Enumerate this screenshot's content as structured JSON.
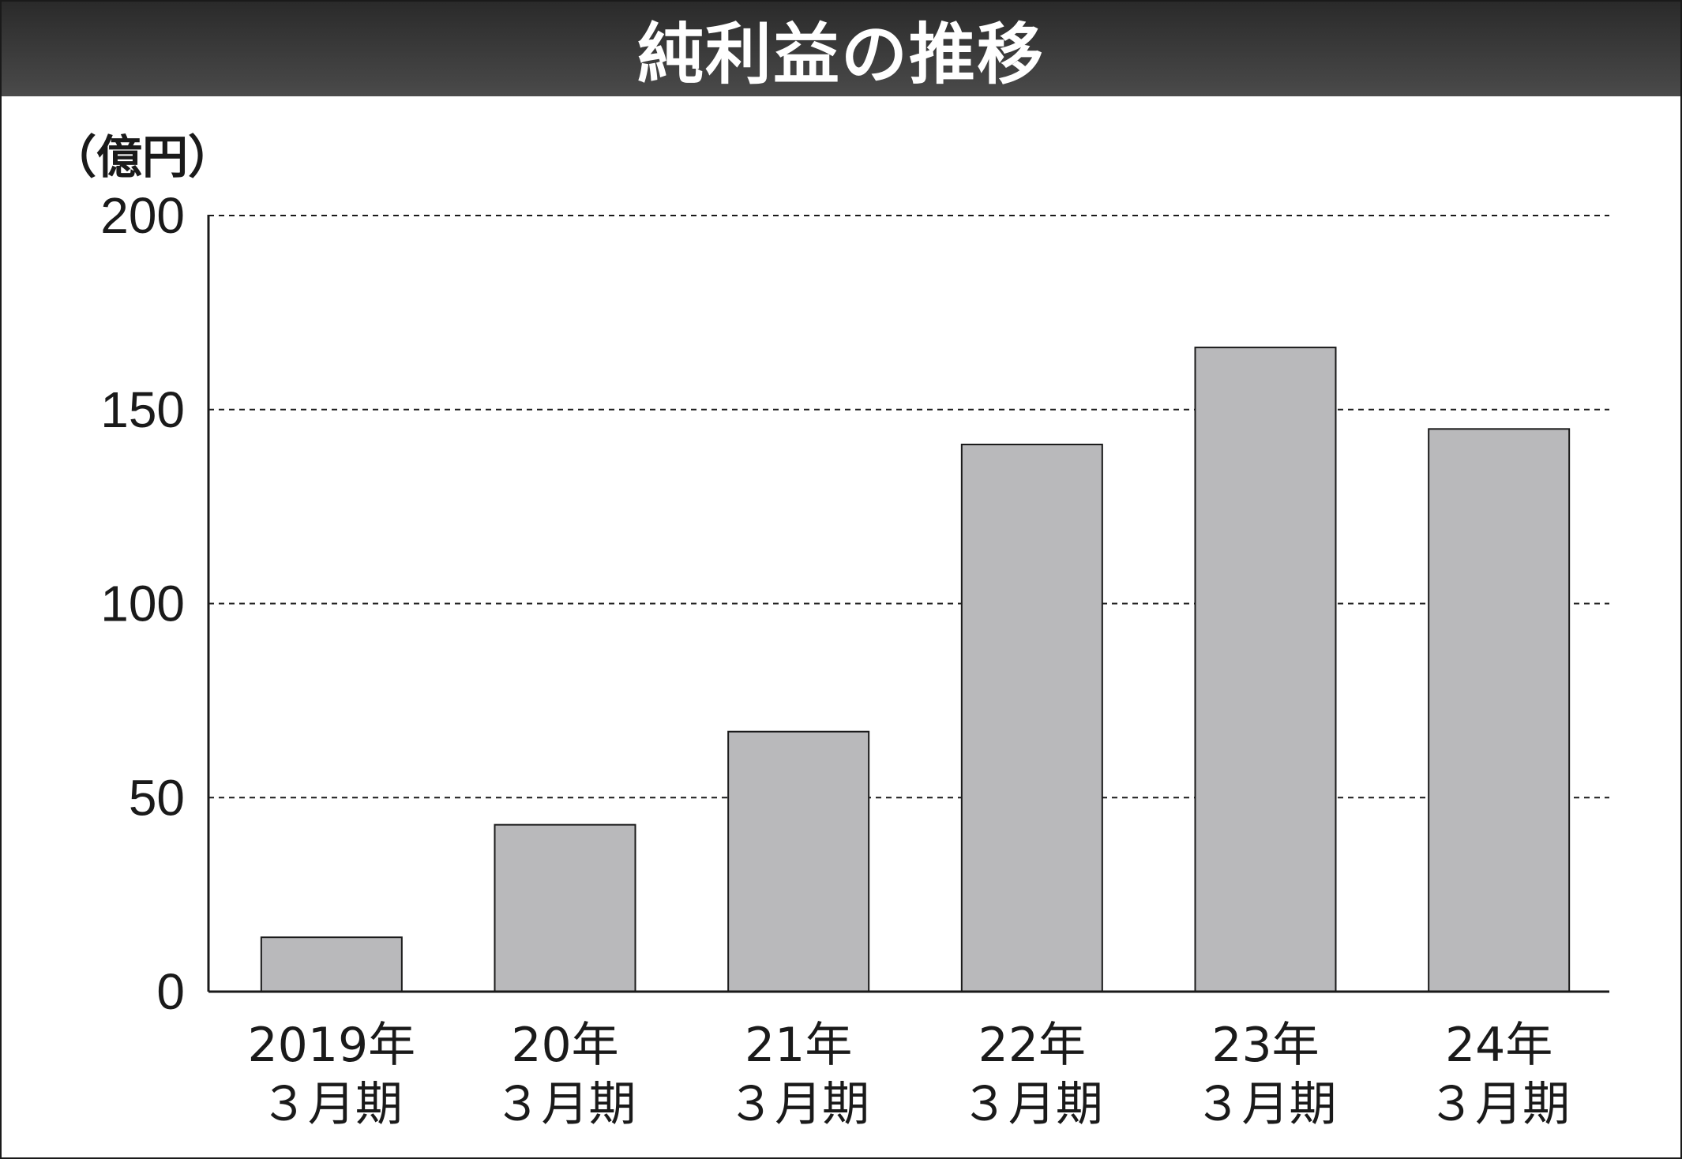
{
  "title": "純利益の推移",
  "chart_data": {
    "type": "bar",
    "ylabel": "（億円）",
    "ylim": [
      0,
      200
    ],
    "yticks": [
      "0",
      "50",
      "100",
      "150",
      "200"
    ],
    "ytick_values": [
      0,
      50,
      100,
      150,
      200
    ],
    "categories": [
      {
        "line1": "2019年",
        "line2": "３月期"
      },
      {
        "line1": "20年",
        "line2": "３月期"
      },
      {
        "line1": "21年",
        "line2": "３月期"
      },
      {
        "line1": "22年",
        "line2": "３月期"
      },
      {
        "line1": "23年",
        "line2": "３月期"
      },
      {
        "line1": "24年",
        "line2": "３月期"
      }
    ],
    "values": [
      14,
      43,
      67,
      141,
      166,
      145
    ],
    "grid": true,
    "bar_color": "#b9b9bb",
    "bar_edge_color": "#1a1a1a"
  }
}
